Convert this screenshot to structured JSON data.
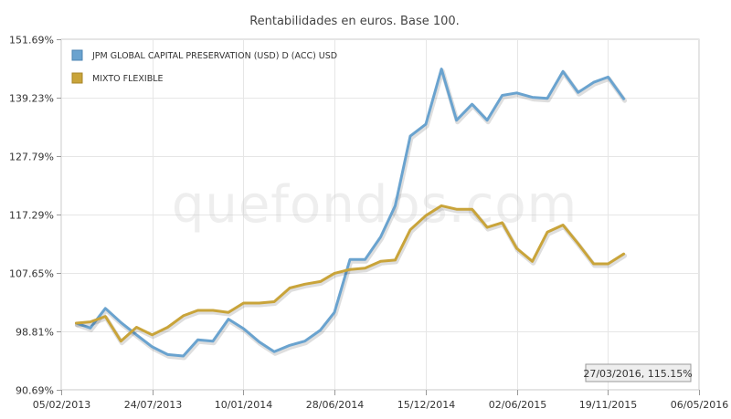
{
  "chart_data": {
    "type": "line",
    "title": "Rentabilidades en euros. Base 100.",
    "watermark": "quefondos.com",
    "y_ticks": [
      "90.69%",
      "98.81%",
      "107.65%",
      "117.29%",
      "127.79%",
      "139.23%",
      "151.69%"
    ],
    "y_tick_values": [
      90.69,
      98.81,
      107.65,
      117.29,
      127.79,
      139.23,
      151.69
    ],
    "ylim": [
      90.69,
      151.69
    ],
    "y_scale": "log",
    "x_ticks": [
      "05/02/2013",
      "24/07/2013",
      "10/01/2014",
      "28/06/2014",
      "15/12/2014",
      "02/06/2015",
      "19/11/2015",
      "06/05/2016"
    ],
    "xlim": [
      "2013-02-05",
      "2016-05-06"
    ],
    "grid": true,
    "legend_position": "top-left",
    "tooltip": "27/03/2016, 115.15%",
    "series": [
      {
        "name": "JPM GLOBAL CAPITAL PRESERVATION (USD) D (ACC) USD",
        "color": "#6aa3cf",
        "points": [
          [
            "2013-03-05",
            100.0
          ],
          [
            "2013-03-31",
            99.3
          ],
          [
            "2013-04-28",
            102.2
          ],
          [
            "2013-05-27",
            100.1
          ],
          [
            "2013-06-25",
            98.3
          ],
          [
            "2013-07-24",
            96.6
          ],
          [
            "2013-08-22",
            95.5
          ],
          [
            "2013-09-20",
            95.3
          ],
          [
            "2013-10-17",
            97.6
          ],
          [
            "2013-11-14",
            97.4
          ],
          [
            "2013-12-13",
            100.6
          ],
          [
            "2014-01-10",
            99.2
          ],
          [
            "2014-02-08",
            97.3
          ],
          [
            "2014-03-08",
            95.9
          ],
          [
            "2014-04-06",
            96.8
          ],
          [
            "2014-05-04",
            97.4
          ],
          [
            "2014-06-02",
            99.0
          ],
          [
            "2014-06-28",
            101.6
          ],
          [
            "2014-07-27",
            109.8
          ],
          [
            "2014-08-24",
            109.8
          ],
          [
            "2014-09-22",
            113.5
          ],
          [
            "2014-10-19",
            118.8
          ],
          [
            "2014-11-16",
            131.6
          ],
          [
            "2014-12-15",
            133.9
          ],
          [
            "2015-01-13",
            145.2
          ],
          [
            "2015-02-10",
            134.7
          ],
          [
            "2015-03-11",
            137.9
          ],
          [
            "2015-04-08",
            134.7
          ],
          [
            "2015-05-06",
            139.7
          ],
          [
            "2015-06-02",
            140.2
          ],
          [
            "2015-07-01",
            139.3
          ],
          [
            "2015-07-29",
            139.1
          ],
          [
            "2015-08-27",
            144.7
          ],
          [
            "2015-09-24",
            140.3
          ],
          [
            "2015-10-23",
            142.4
          ],
          [
            "2015-11-19",
            143.5
          ],
          [
            "2015-12-18",
            139.0
          ]
        ]
      },
      {
        "name": "MIXTO FLEXIBLE",
        "color": "#c9a43a",
        "points": [
          [
            "2013-03-05",
            100.0
          ],
          [
            "2013-03-31",
            100.2
          ],
          [
            "2013-04-28",
            101.0
          ],
          [
            "2013-05-27",
            97.4
          ],
          [
            "2013-06-25",
            99.4
          ],
          [
            "2013-07-24",
            98.3
          ],
          [
            "2013-08-22",
            99.4
          ],
          [
            "2013-09-20",
            101.1
          ],
          [
            "2013-10-17",
            101.9
          ],
          [
            "2013-11-14",
            101.9
          ],
          [
            "2013-12-13",
            101.6
          ],
          [
            "2014-01-10",
            103.0
          ],
          [
            "2014-02-08",
            103.0
          ],
          [
            "2014-03-08",
            103.2
          ],
          [
            "2014-04-06",
            105.3
          ],
          [
            "2014-05-04",
            105.9
          ],
          [
            "2014-06-02",
            106.3
          ],
          [
            "2014-06-28",
            107.6
          ],
          [
            "2014-07-27",
            108.2
          ],
          [
            "2014-08-24",
            108.4
          ],
          [
            "2014-09-22",
            109.5
          ],
          [
            "2014-10-19",
            109.7
          ],
          [
            "2014-11-16",
            114.7
          ],
          [
            "2014-12-15",
            117.1
          ],
          [
            "2015-01-13",
            118.8
          ],
          [
            "2015-02-10",
            118.2
          ],
          [
            "2015-03-11",
            118.2
          ],
          [
            "2015-04-08",
            115.1
          ],
          [
            "2015-05-06",
            115.9
          ],
          [
            "2015-06-02",
            111.6
          ],
          [
            "2015-07-01",
            109.5
          ],
          [
            "2015-07-29",
            114.3
          ],
          [
            "2015-08-27",
            115.5
          ],
          [
            "2015-09-24",
            112.4
          ],
          [
            "2015-10-23",
            109.1
          ],
          [
            "2015-11-19",
            109.1
          ],
          [
            "2015-12-18",
            110.7
          ]
        ]
      }
    ]
  }
}
